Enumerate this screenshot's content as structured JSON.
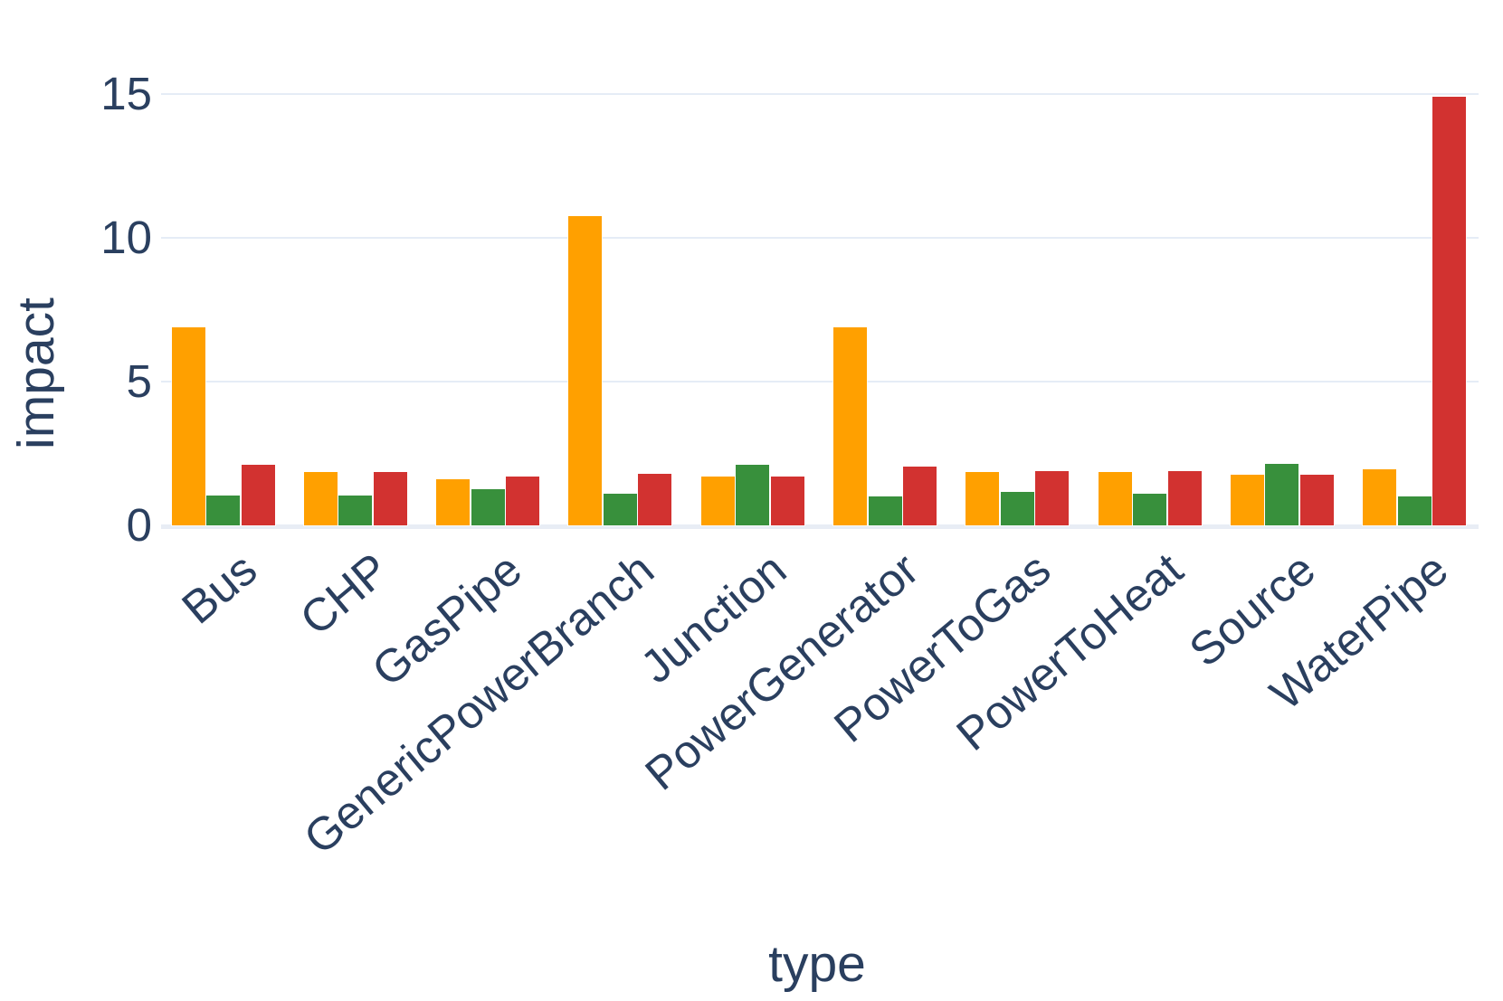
{
  "chart_data": {
    "type": "bar",
    "title": "",
    "xlabel": "type",
    "ylabel": "impact",
    "categories": [
      "Bus",
      "CHP",
      "GasPipe",
      "GenericPowerBranch",
      "Junction",
      "PowerGenerator",
      "PowerToGas",
      "PowerToHeat",
      "Source",
      "WaterPipe"
    ],
    "series": [
      {
        "name": "orange",
        "color": "#ffa000",
        "values": [
          6.9,
          1.85,
          1.6,
          10.75,
          1.7,
          6.9,
          1.85,
          1.85,
          1.75,
          1.95
        ]
      },
      {
        "name": "green",
        "color": "#38903c",
        "values": [
          1.05,
          1.05,
          1.25,
          1.1,
          2.1,
          1.0,
          1.15,
          1.1,
          2.15,
          1.0
        ]
      },
      {
        "name": "red",
        "color": "#d23230",
        "values": [
          2.1,
          1.85,
          1.7,
          1.8,
          1.7,
          2.05,
          1.9,
          1.9,
          1.75,
          14.9
        ]
      }
    ],
    "yticks": [
      0,
      5,
      10,
      15
    ],
    "ylim": [
      0,
      15.7
    ],
    "grid": true,
    "legend": false,
    "colors": {
      "axis_text": "#2a3f5f",
      "gridline": "#e5ecf6",
      "zeroline": "#e8edf5",
      "background": "#ffffff"
    }
  }
}
